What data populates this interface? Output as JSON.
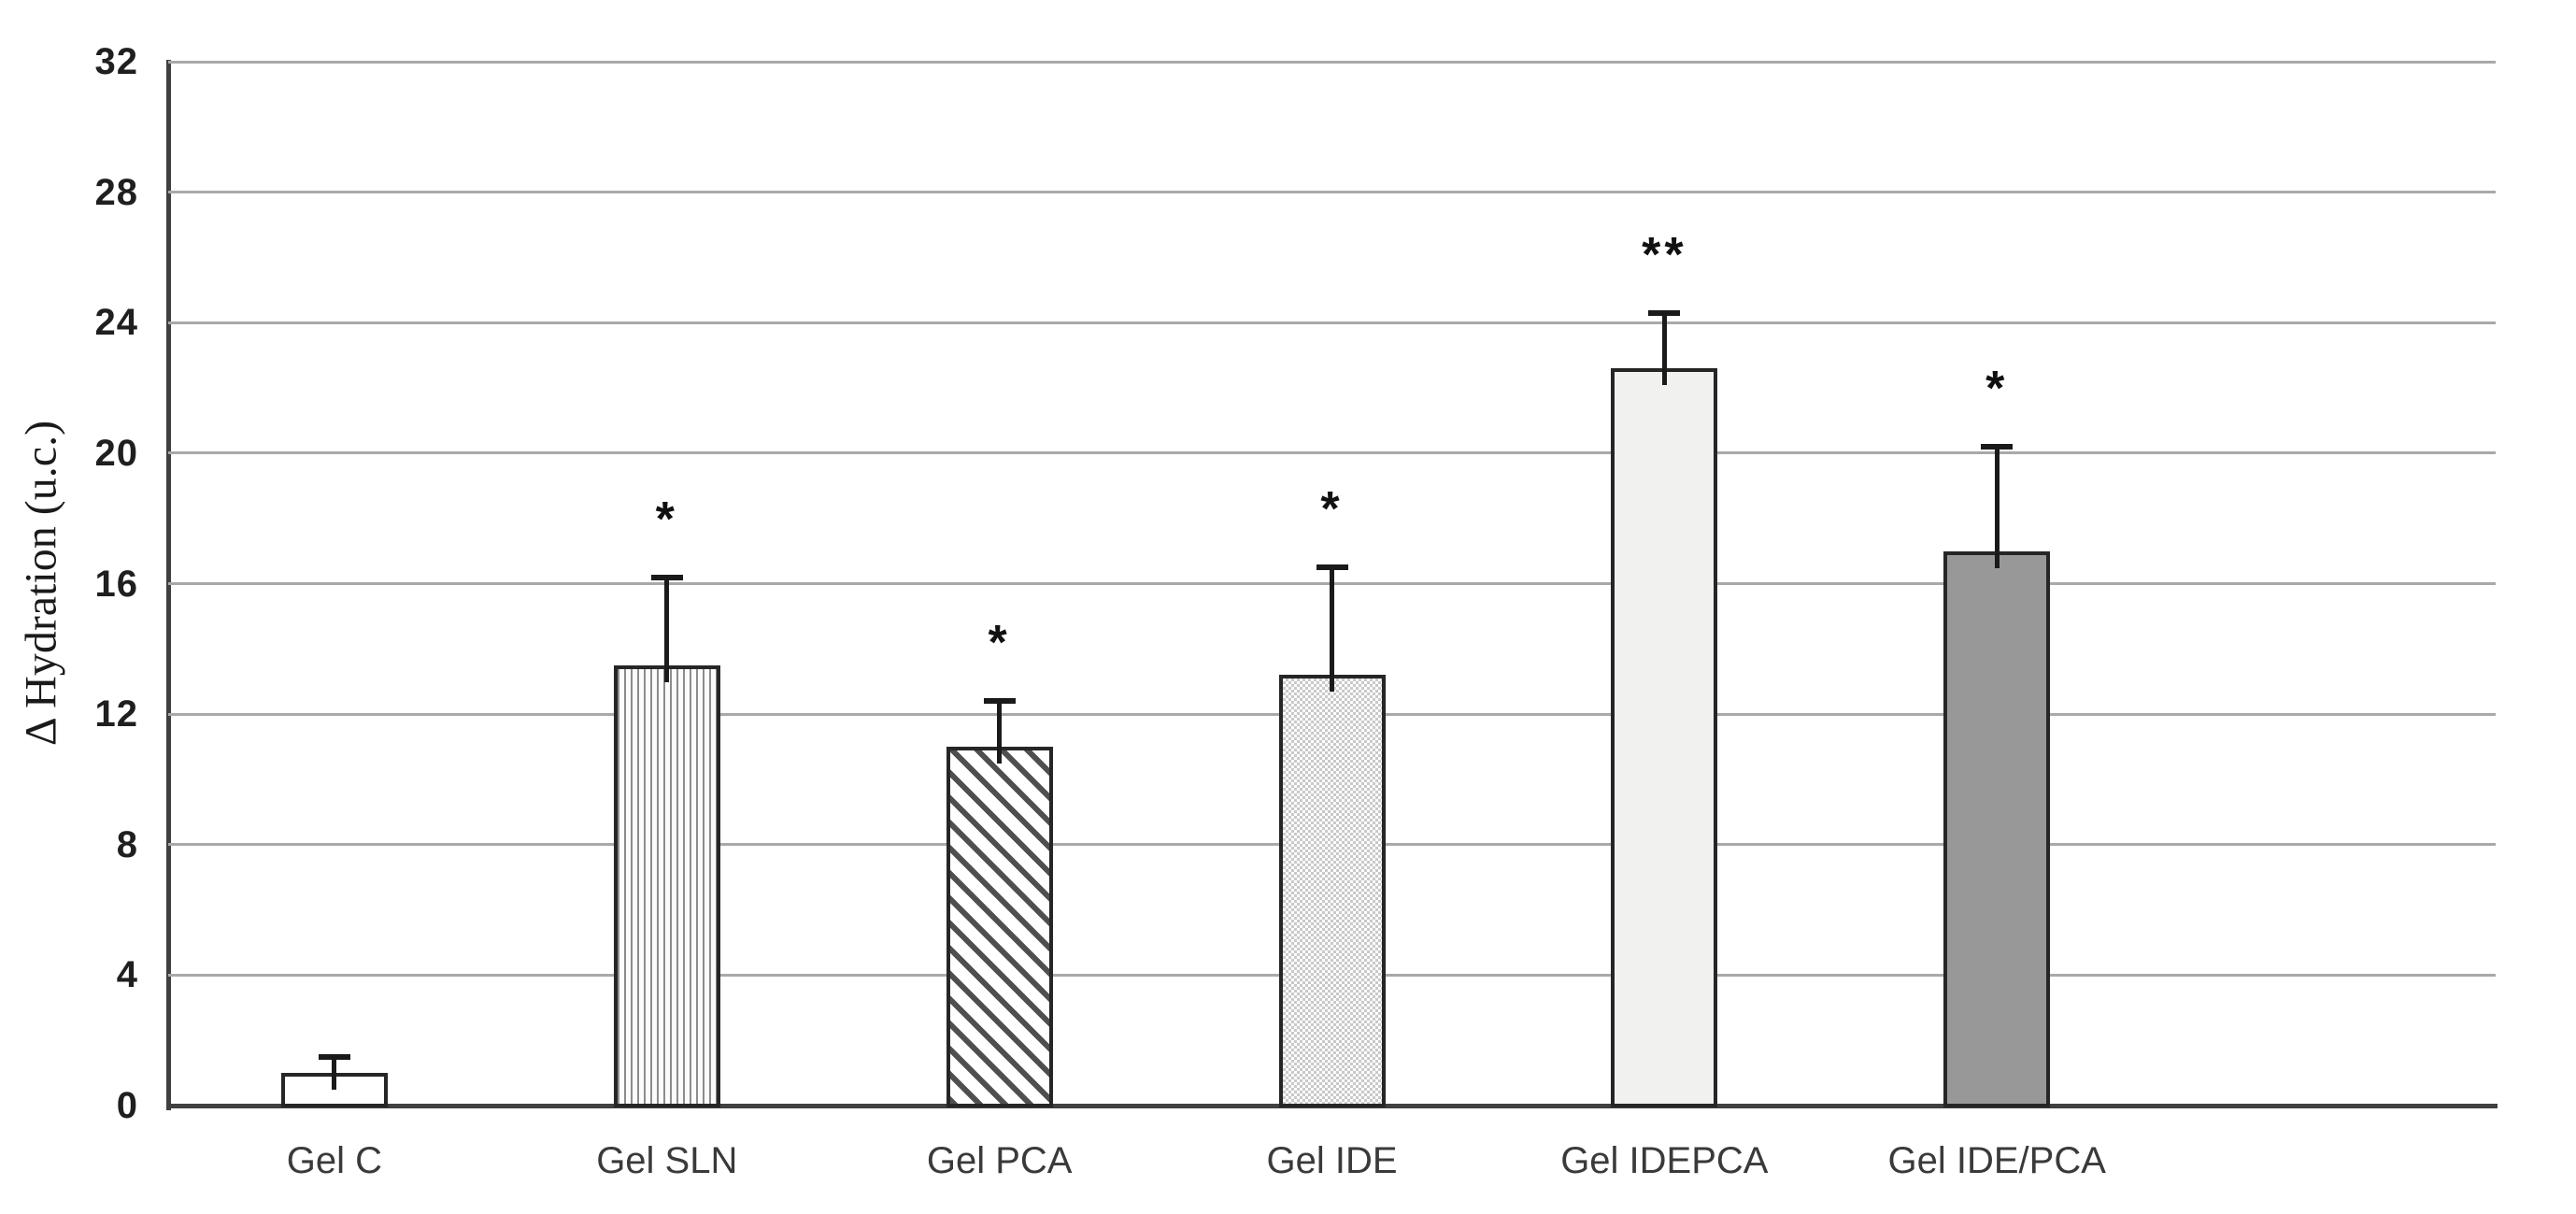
{
  "figure": {
    "background": "#ffffff",
    "kind": "scientific bar chart with error bars and significance asterisks"
  },
  "chart_data": {
    "type": "bar",
    "title": "",
    "xlabel": "",
    "ylabel": "Δ Hydration (u.c.)",
    "ylim": [
      0,
      32
    ],
    "yticks": [
      0,
      4,
      8,
      12,
      16,
      20,
      24,
      28,
      32
    ],
    "grid": "horizontal gridlines on, no right/top frame",
    "legend": "none",
    "categories": [
      "Gel C",
      "Gel SLN",
      "Gel PCA",
      "Gel IDE",
      "Gel IDEPCA",
      "Gel IDE/PCA"
    ],
    "values": [
      1.0,
      13.5,
      11.0,
      13.2,
      22.6,
      17.0
    ],
    "errors_plus": [
      0.5,
      2.7,
      1.4,
      3.3,
      1.7,
      3.2
    ],
    "significance": [
      "",
      "*",
      "*",
      "*",
      "**",
      "*"
    ],
    "bar_patterns": [
      "solid-white",
      "vertical-stripes",
      "diagonal-stripes",
      "checkerboard",
      "solid-near-white",
      "solid-gray"
    ],
    "colors": {
      "bar_outline": "#262626",
      "error_bar": "#1a1a1a",
      "gridline": "#a9a9a9",
      "axis": "#404040",
      "near_white_fill": "#f1f1ef",
      "gray_fill": "#989898",
      "text": "#1f1f1f"
    }
  }
}
